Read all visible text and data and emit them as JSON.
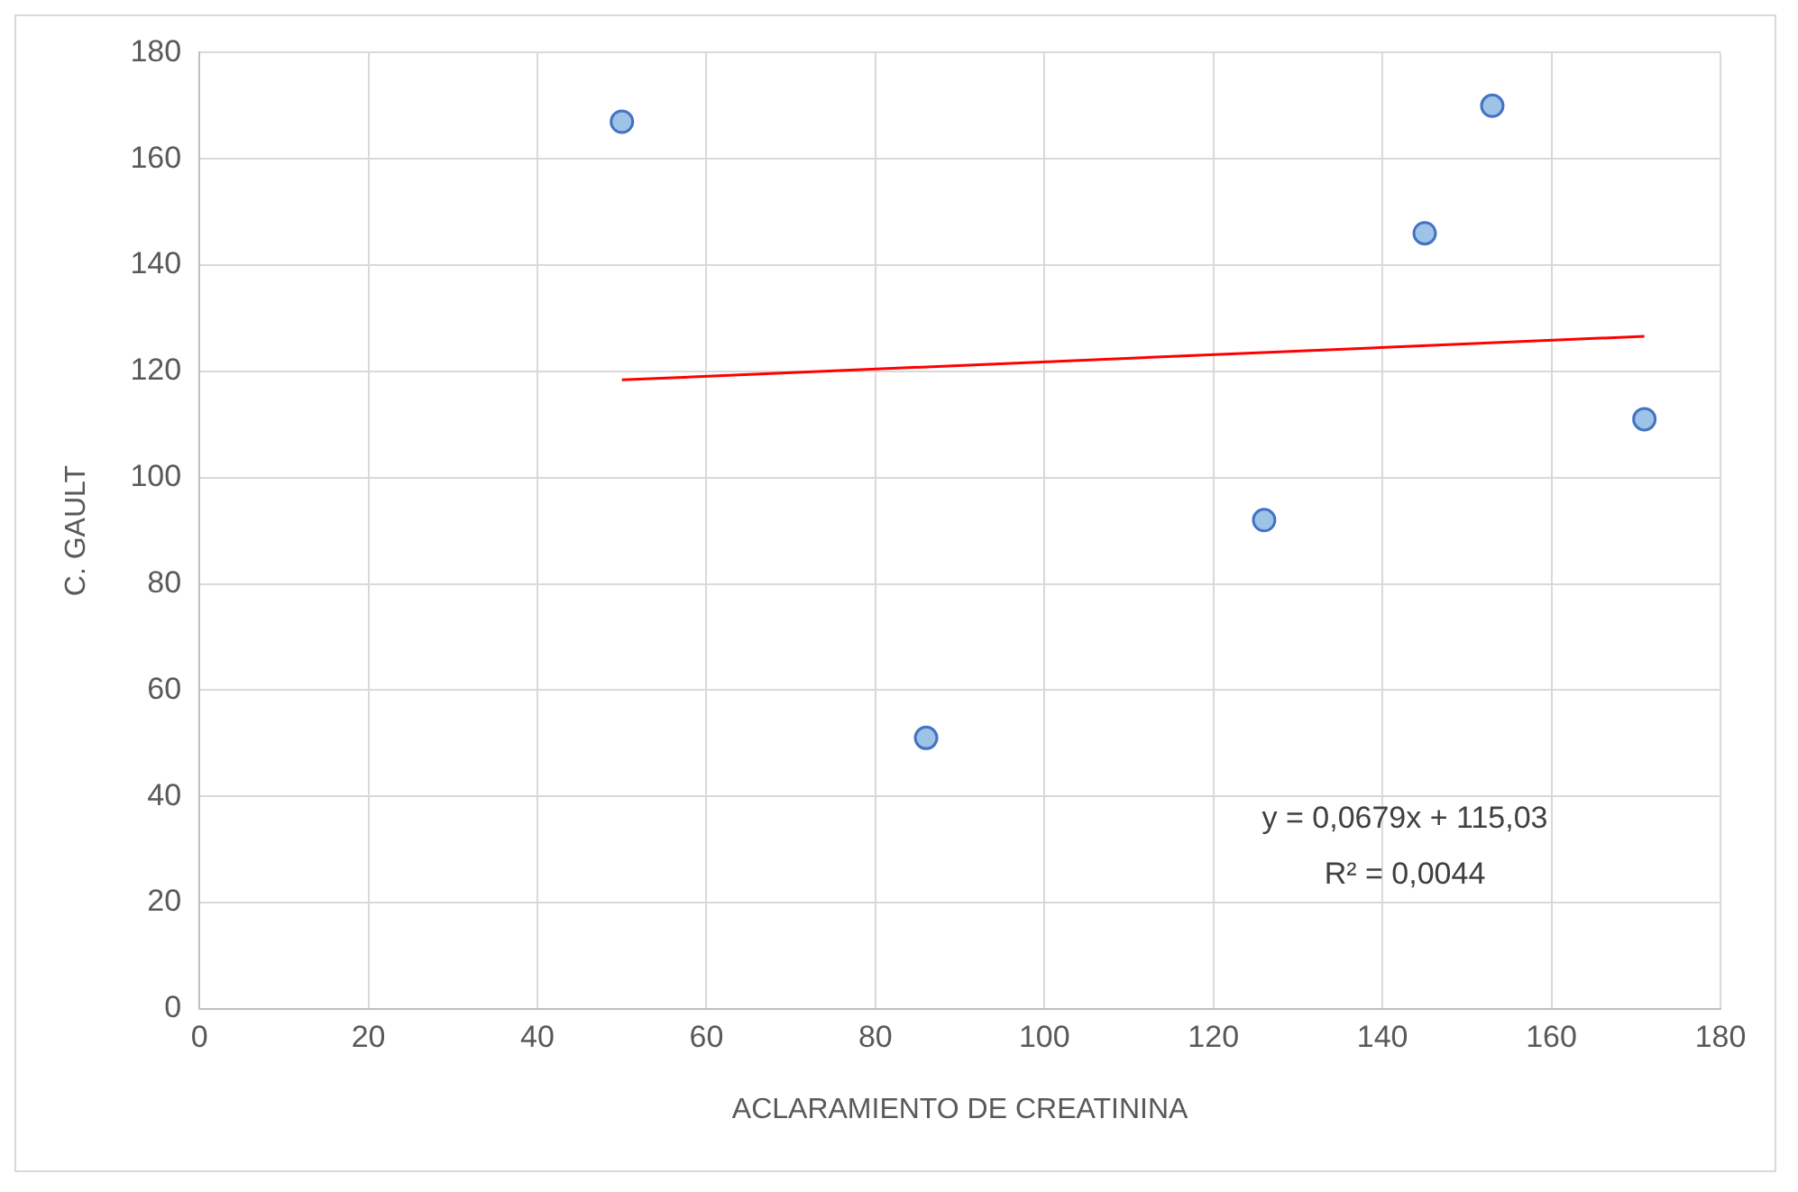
{
  "chart_data": {
    "type": "scatter",
    "xlabel": "ACLARAMIENTO DE CREATININA",
    "ylabel": "C. GAULT",
    "xlim": [
      0,
      180
    ],
    "xticks": [
      0,
      20,
      40,
      60,
      80,
      100,
      120,
      140,
      160,
      180
    ],
    "ylim": [
      0,
      180
    ],
    "yticks": [
      0,
      20,
      40,
      60,
      80,
      100,
      120,
      140,
      160,
      180
    ],
    "grid": true,
    "legend": false,
    "marker": "circle",
    "series": [
      {
        "color": "#9dc3e6",
        "x": [
          50,
          86,
          126,
          145,
          153,
          171
        ],
        "values": [
          167,
          51,
          92,
          146,
          170,
          111
        ]
      },
      {
        "type": "line",
        "color": "#ff0000",
        "marker": "none",
        "x": [
          50,
          171
        ],
        "values": [
          118.4,
          126.6
        ]
      }
    ],
    "annotations": [
      "y = 0,0679x + 115,03",
      "R² = 0,0044"
    ]
  }
}
